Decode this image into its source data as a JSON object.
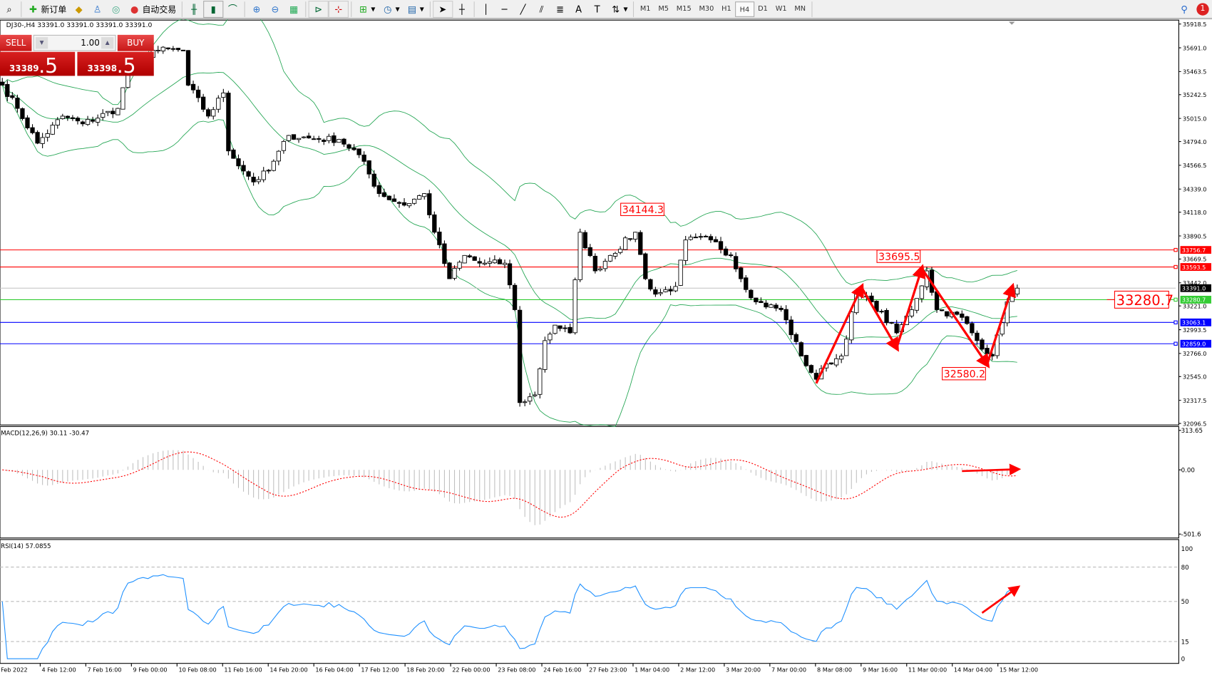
{
  "toolbar": {
    "new_order": "新订单",
    "auto_trading": "自动交易",
    "timeframes": [
      "M1",
      "M5",
      "M15",
      "M30",
      "H1",
      "H4",
      "D1",
      "W1",
      "MN"
    ],
    "active_timeframe": "H4",
    "notification_count": "1"
  },
  "symbol_header": "DJ30-,H4  33391.0 33391.0 33391.0 33391.0",
  "trade_panel": {
    "sell_label": "SELL",
    "buy_label": "BUY",
    "lot": "1.00",
    "sell_price_main": "33389",
    "sell_price_big": ".5",
    "buy_price_main": "33398",
    "buy_price_big": ".5"
  },
  "colors": {
    "up": "#ffffff",
    "down": "#000000",
    "bands": "#22a552",
    "zigzag": "#ff0000",
    "rsi": "#1e90ff",
    "macd_signal": "#ff0000",
    "macd_hist": "#c0c0c0"
  },
  "chart_data": {
    "type": "candlestick",
    "symbol": "DJ30-",
    "timeframe": "H4",
    "price_axis": {
      "ticks": [
        "35918.5",
        "35691.0",
        "35463.5",
        "35242.5",
        "35015.0",
        "34794.0",
        "34566.5",
        "34339.0",
        "34118.0",
        "33890.5",
        "33669.5",
        "33442.0",
        "33221.0",
        "32993.5",
        "32766.0",
        "32545.0",
        "32317.5",
        "32096.5"
      ],
      "range": [
        32096.5,
        35918.5
      ]
    },
    "time_axis": [
      "Feb 2022",
      "4 Feb 12:00",
      "7 Feb 16:00",
      "9 Feb 00:00",
      "10 Feb 08:00",
      "11 Feb 16:00",
      "14 Feb 20:00",
      "16 Feb 04:00",
      "17 Feb 12:00",
      "18 Feb 20:00",
      "22 Feb 00:00",
      "23 Feb 08:00",
      "24 Feb 16:00",
      "27 Feb 23:00",
      "1 Mar 04:00",
      "2 Mar 12:00",
      "3 Mar 20:00",
      "7 Mar 00:00",
      "8 Mar 08:00",
      "9 Mar 16:00",
      "11 Mar 00:00",
      "14 Mar 04:00",
      "15 Mar 12:00"
    ],
    "close_anchors": [
      [
        0,
        35333
      ],
      [
        3,
        35111
      ],
      [
        7,
        34778
      ],
      [
        12,
        35037
      ],
      [
        16,
        34963
      ],
      [
        23,
        35111
      ],
      [
        25,
        35481
      ],
      [
        30,
        35667
      ],
      [
        36,
        35667
      ],
      [
        37,
        35333
      ],
      [
        41,
        35037
      ],
      [
        44,
        35259
      ],
      [
        45,
        34704
      ],
      [
        50,
        34407
      ],
      [
        53,
        34518
      ],
      [
        57,
        34852
      ],
      [
        63,
        34815
      ],
      [
        67,
        34815
      ],
      [
        71,
        34667
      ],
      [
        75,
        34296
      ],
      [
        80,
        34185
      ],
      [
        84,
        34296
      ],
      [
        86,
        33926
      ],
      [
        89,
        33481
      ],
      [
        92,
        33704
      ],
      [
        95,
        33630
      ],
      [
        100,
        33630
      ],
      [
        102,
        33185
      ],
      [
        103,
        32296
      ],
      [
        106,
        32370
      ],
      [
        108,
        32889
      ],
      [
        110,
        33037
      ],
      [
        113,
        32963
      ],
      [
        115,
        33926
      ],
      [
        118,
        33556
      ],
      [
        121,
        33704
      ],
      [
        126,
        33926
      ],
      [
        128,
        33481
      ],
      [
        130,
        33333
      ],
      [
        134,
        33407
      ],
      [
        136,
        33852
      ],
      [
        141,
        33852
      ],
      [
        145,
        33704
      ],
      [
        147,
        33481
      ],
      [
        150,
        33259
      ],
      [
        155,
        33185
      ],
      [
        159,
        32741
      ],
      [
        162,
        32519
      ],
      [
        164,
        32667
      ],
      [
        167,
        32741
      ],
      [
        170,
        33333
      ],
      [
        173,
        33259
      ],
      [
        178,
        32963
      ],
      [
        181,
        33185
      ],
      [
        184,
        33556
      ],
      [
        186,
        33185
      ],
      [
        191,
        33111
      ],
      [
        194,
        32889
      ],
      [
        197,
        32741
      ],
      [
        200,
        33259
      ],
      [
        202,
        33391
      ]
    ],
    "horizontal_lines": [
      {
        "price": "33756.7",
        "color": "#ff0000"
      },
      {
        "price": "33593.5",
        "color": "#ff0000"
      },
      {
        "price": "33391.0",
        "color": "#000000",
        "line": "#c0c0c0"
      },
      {
        "price": "33280.7",
        "color": "#33cc33"
      },
      {
        "price": "33063.1",
        "color": "#0000ff"
      },
      {
        "price": "32859.0",
        "color": "#0000ff"
      }
    ],
    "annotations": [
      {
        "text": "34144.3",
        "bar": 132
      },
      {
        "text": "33695.5",
        "bar": 183
      },
      {
        "text": "32580.2",
        "bar": 196
      },
      {
        "text": "33280.7",
        "bar": "right"
      }
    ],
    "zigzag": [
      [
        162,
        32480
      ],
      [
        171,
        33400
      ],
      [
        178,
        32820
      ],
      [
        183,
        33580
      ],
      [
        196,
        32660
      ],
      [
        201,
        33400
      ]
    ],
    "bollinger": {
      "period": 20,
      "deviation": 2
    },
    "macd": {
      "label": "MACD(12,26,9) 30.11 -30.47",
      "axis": [
        "313.65",
        "0.00",
        "-501.6"
      ],
      "range": [
        -501.6,
        313.65
      ]
    },
    "rsi": {
      "label": "RSI(14) 57.0855",
      "axis": [
        "100",
        "80",
        "50",
        "15",
        "0"
      ],
      "levels": [
        80,
        50,
        15
      ]
    }
  }
}
